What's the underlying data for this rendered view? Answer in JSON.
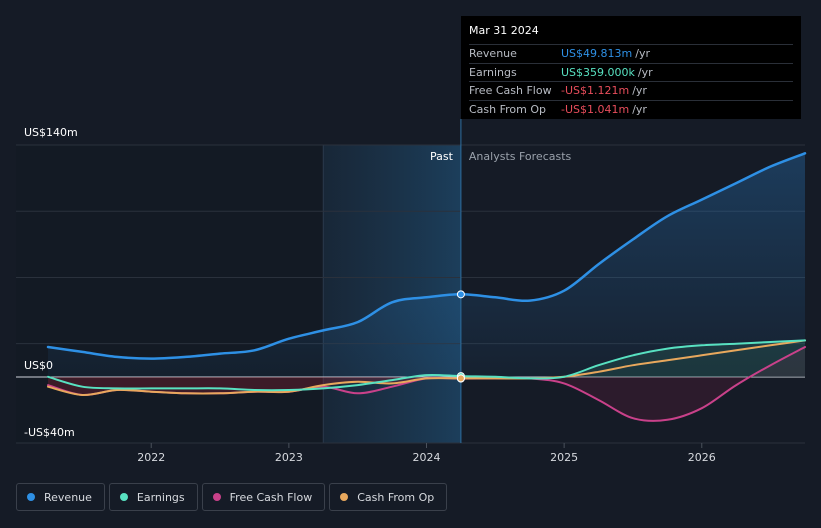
{
  "chart_data": {
    "type": "line",
    "title": "",
    "y_unit_labels": {
      "top": "US$140m",
      "zero": "US$0",
      "bottom": "-US$40m"
    },
    "ylim": [
      -40,
      140
    ],
    "x_ticks": [
      "2022",
      "2023",
      "2024",
      "2025",
      "2026"
    ],
    "x_range": [
      2021.25,
      2026.75
    ],
    "past_label": "Past",
    "forecast_label": "Analysts Forecasts",
    "past_region": [
      2023.25,
      2024.25
    ],
    "current_date_x": 2024.25,
    "series": [
      {
        "name": "Revenue",
        "color": "#2e90e5",
        "x": [
          2021.25,
          2021.5,
          2021.75,
          2022.0,
          2022.25,
          2022.5,
          2022.75,
          2023.0,
          2023.25,
          2023.5,
          2023.75,
          2024.0,
          2024.25,
          2024.5,
          2024.75,
          2025.0,
          2025.25,
          2025.5,
          2025.75,
          2026.0,
          2026.25,
          2026.5,
          2026.75
        ],
        "y": [
          18,
          15,
          12,
          11,
          12,
          14,
          16,
          23,
          28,
          33,
          45,
          48,
          49.8,
          48,
          46,
          52,
          68,
          83,
          97,
          107,
          117,
          127,
          135
        ]
      },
      {
        "name": "Earnings",
        "color": "#58e1c1",
        "x": [
          2021.25,
          2021.5,
          2021.75,
          2022.0,
          2022.25,
          2022.5,
          2022.75,
          2023.0,
          2023.25,
          2023.5,
          2023.75,
          2024.0,
          2024.25,
          2024.5,
          2024.75,
          2025.0,
          2025.25,
          2025.5,
          2025.75,
          2026.0,
          2026.25,
          2026.5,
          2026.75
        ],
        "y": [
          0,
          -6,
          -7,
          -7,
          -7,
          -7,
          -8,
          -8,
          -7,
          -5,
          -2,
          1,
          0.4,
          0,
          -1,
          0,
          7,
          13,
          17,
          19,
          20,
          21,
          22
        ]
      },
      {
        "name": "Free Cash Flow",
        "color": "#c9418a",
        "x": [
          2021.25,
          2021.5,
          2021.75,
          2022.0,
          2022.25,
          2022.5,
          2022.75,
          2023.0,
          2023.25,
          2023.5,
          2023.75,
          2024.0,
          2024.25,
          2024.5,
          2024.75,
          2025.0,
          2025.25,
          2025.5,
          2025.75,
          2026.0,
          2026.25,
          2026.5,
          2026.75
        ],
        "y": [
          -5,
          -11,
          -8,
          -9,
          -10,
          -10,
          -9,
          -9,
          -6,
          -10,
          -6,
          -1,
          -1.1,
          -1,
          -1,
          -4,
          -14,
          -25,
          -26,
          -19,
          -5,
          7,
          18
        ]
      },
      {
        "name": "Cash From Op",
        "color": "#e8a85d",
        "x": [
          2021.25,
          2021.5,
          2021.75,
          2022.0,
          2022.25,
          2022.5,
          2022.75,
          2023.0,
          2023.25,
          2023.5,
          2023.75,
          2024.0,
          2024.25,
          2024.5,
          2024.75,
          2025.0,
          2025.25,
          2025.5,
          2025.75,
          2026.0,
          2026.25,
          2026.5,
          2026.75
        ],
        "y": [
          -6,
          -11,
          -8,
          -9,
          -10,
          -10,
          -9,
          -9,
          -5,
          -3,
          -4,
          -1,
          -1.0,
          -1,
          -1,
          0,
          3,
          7,
          10,
          13,
          16,
          19,
          22
        ]
      }
    ]
  },
  "tooltip": {
    "date": "Mar 31 2024",
    "rows": [
      {
        "label": "Revenue",
        "value": "US$49.813m",
        "unit": "/yr",
        "color": "#2e90e5"
      },
      {
        "label": "Earnings",
        "value": "US$359.000k",
        "unit": "/yr",
        "color": "#58e1c1"
      },
      {
        "label": "Free Cash Flow",
        "value": "-US$1.121m",
        "unit": "/yr",
        "color": "#e84d5b"
      },
      {
        "label": "Cash From Op",
        "value": "-US$1.041m",
        "unit": "/yr",
        "color": "#e84d5b"
      }
    ]
  },
  "legend": [
    {
      "label": "Revenue",
      "color": "#2e90e5"
    },
    {
      "label": "Earnings",
      "color": "#58e1c1"
    },
    {
      "label": "Free Cash Flow",
      "color": "#c9418a"
    },
    {
      "label": "Cash From Op",
      "color": "#e8a85d"
    }
  ]
}
